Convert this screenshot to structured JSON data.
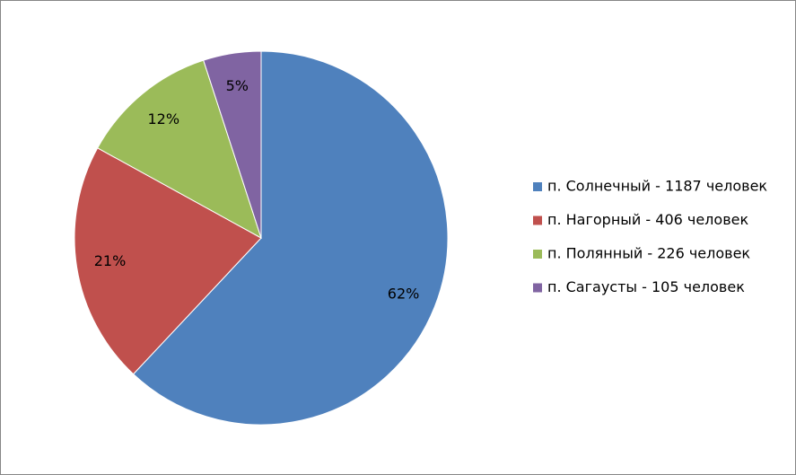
{
  "chart_data": {
    "type": "pie",
    "categories": [
      "п. Солнечный - 1187 человек",
      "п. Нагорный - 406 человек",
      "п. Полянный - 226 человек",
      "п. Сагаусты - 105 человек"
    ],
    "values": [
      62,
      21,
      12,
      5
    ],
    "value_labels": [
      "62%",
      "21%",
      "12%",
      "5%"
    ],
    "colors": [
      "#4f81bd",
      "#c0504d",
      "#9bbb59",
      "#8064a2"
    ],
    "legend": "right"
  }
}
